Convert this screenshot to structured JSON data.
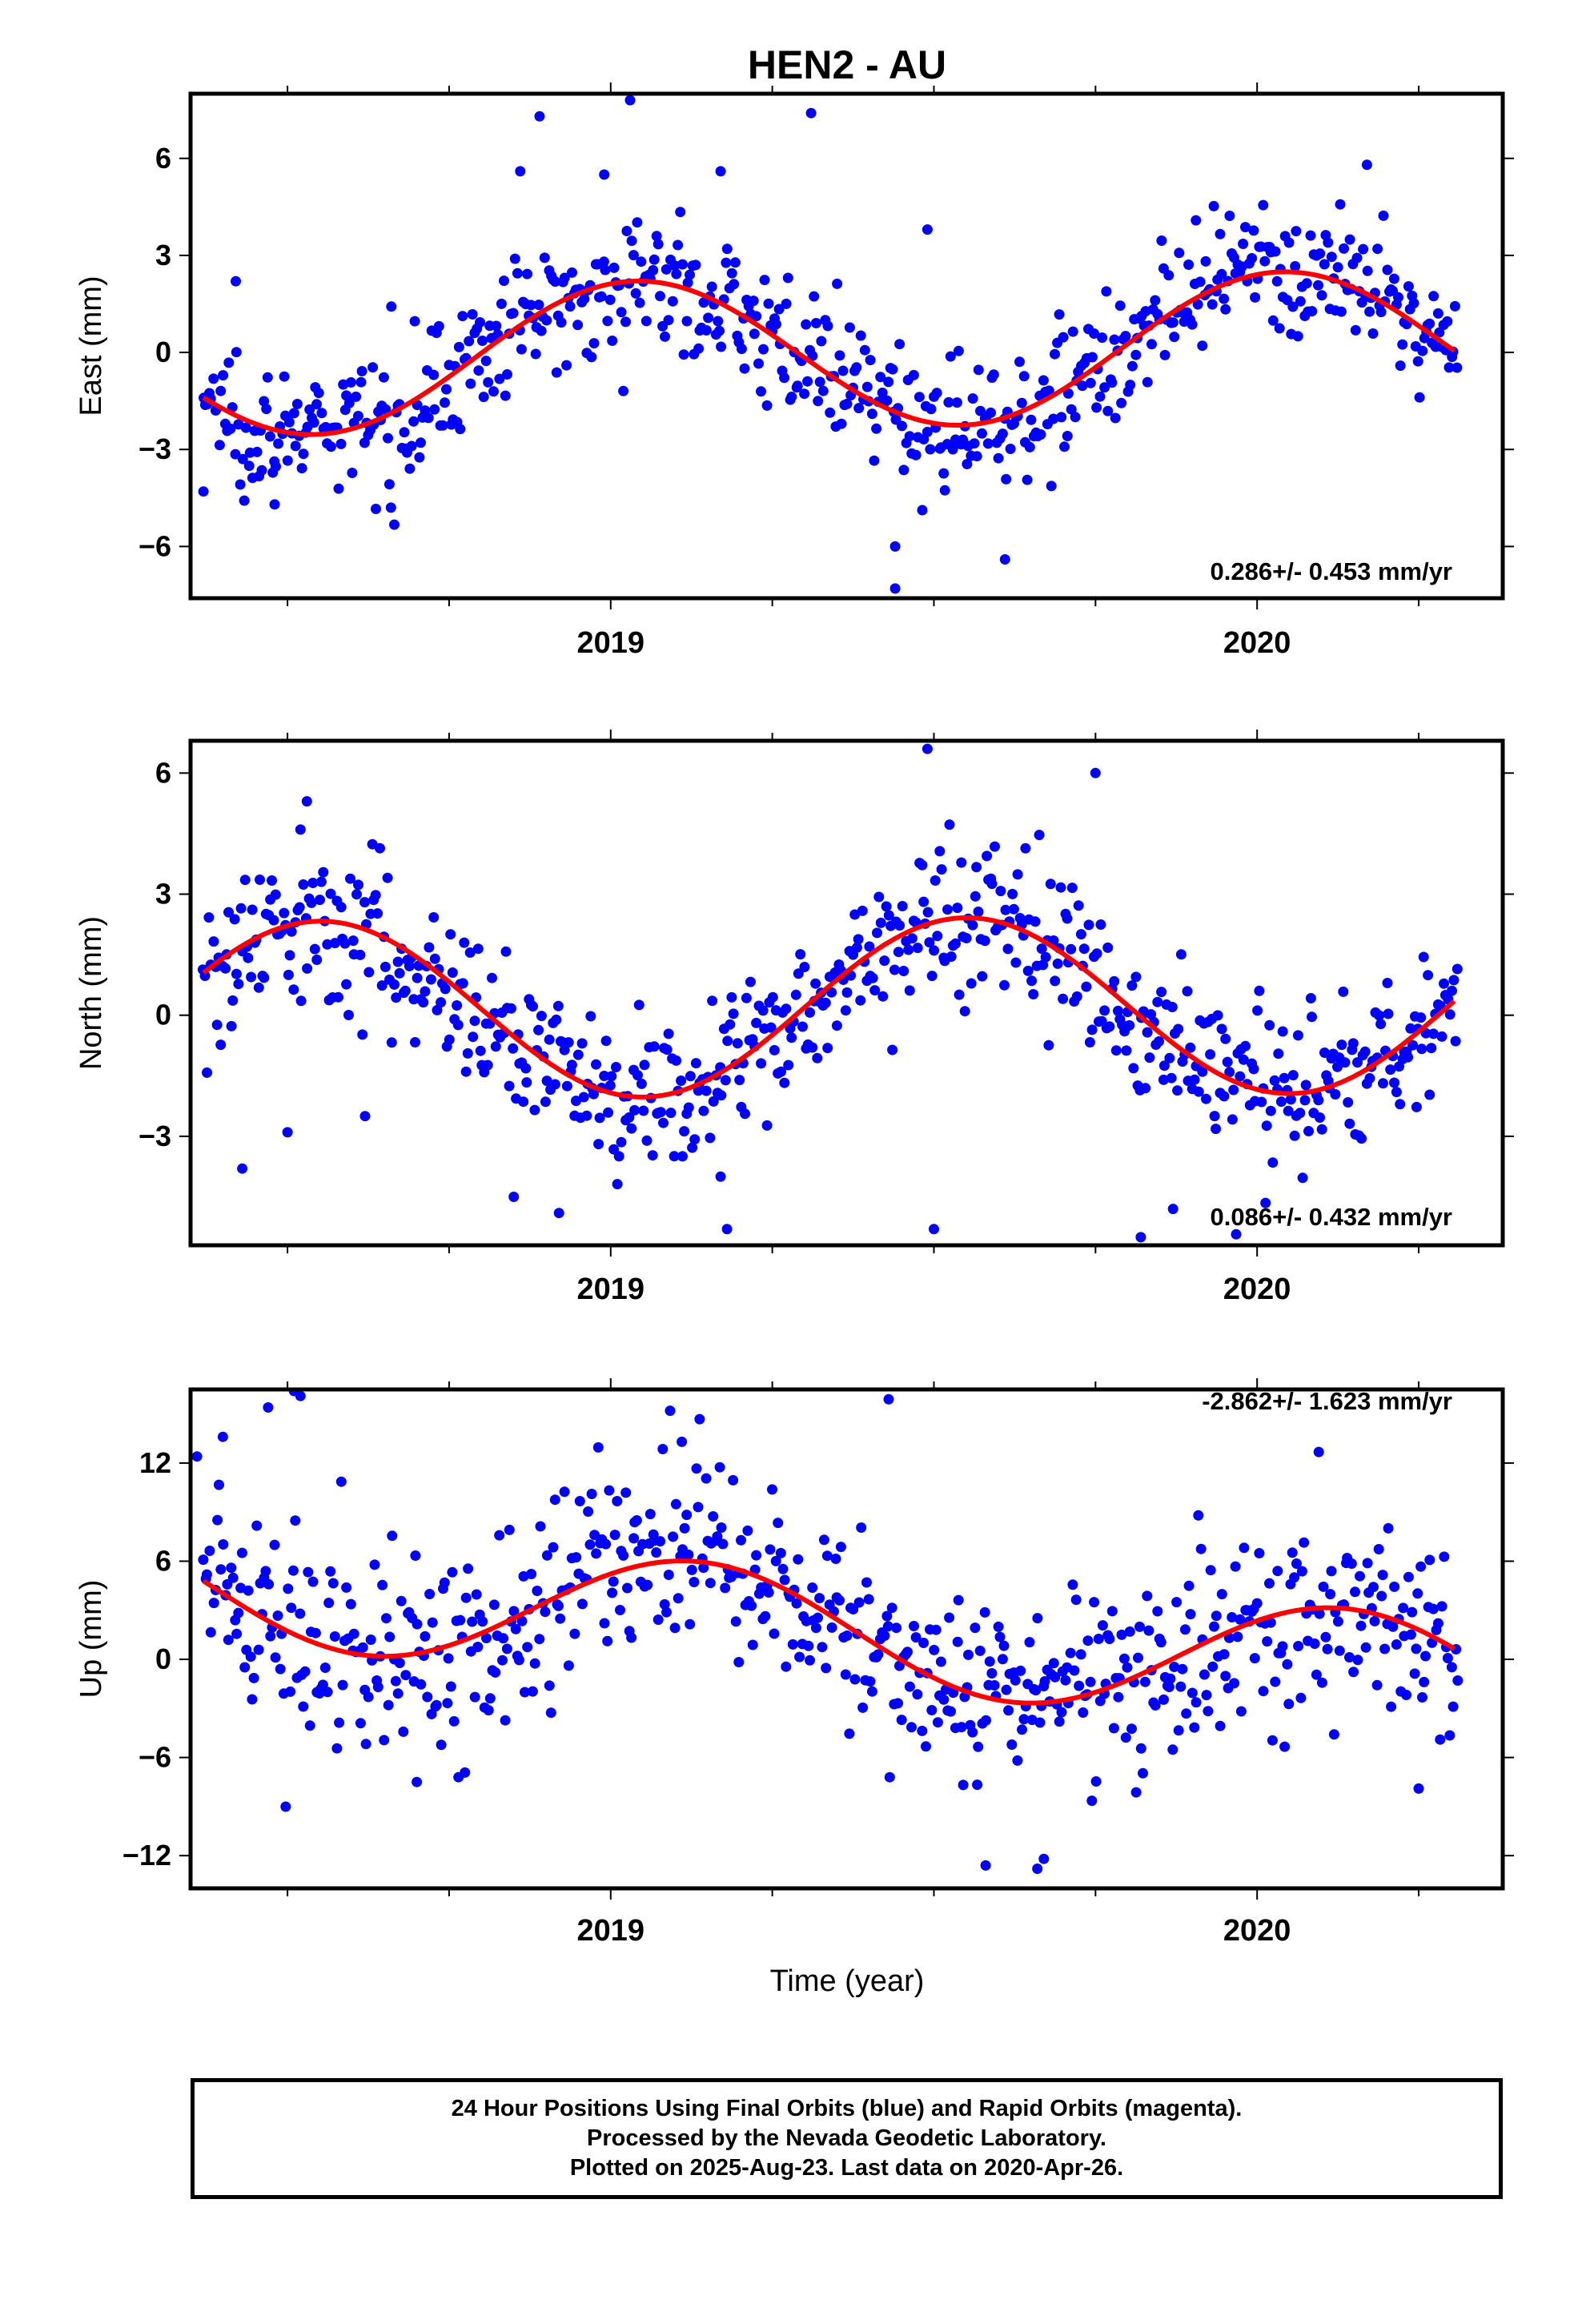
{
  "title": "HEN2 - AU",
  "xlabel": "Time (year)",
  "colors": {
    "final_orbits": "#0000ff",
    "model": "#ff0000",
    "frame": "#000000"
  },
  "caption": [
    "24 Hour Positions Using Final Orbits (blue) and Rapid Orbits (magenta).",
    "Processed by the Nevada Geodetic Laboratory.",
    "Plotted on 2025-Aug-23. Last data on 2020-Apr-26."
  ],
  "chart_data": [
    {
      "type": "scatter",
      "component": "East",
      "ylabel": "East (mm)",
      "rate_label": "0.286+/- 0.453 mm/yr",
      "xlim": [
        2018.35,
        2020.38
      ],
      "ylim": [
        -7.6,
        8.0
      ],
      "xticks": [
        2019,
        2020
      ],
      "xtick_labels": [
        "2019",
        "2020"
      ],
      "yticks": [
        -6,
        -3,
        0,
        3,
        6
      ],
      "ytick_labels": [
        "−6",
        "−3",
        "0",
        "3",
        "6"
      ],
      "model": {
        "mean": 0.0,
        "trend": 0.286,
        "amplitude": 2.3,
        "peak": 2019.04
      },
      "noise_sd": 1.0,
      "outliers": [
        [
          2019.03,
          7.8
        ],
        [
          2019.31,
          7.4
        ],
        [
          2018.89,
          7.3
        ],
        [
          2018.86,
          5.6
        ],
        [
          2018.99,
          5.5
        ],
        [
          2019.17,
          5.6
        ],
        [
          2019.49,
          3.8
        ],
        [
          2019.44,
          -6.0
        ],
        [
          2019.44,
          -7.3
        ],
        [
          2019.61,
          -6.4
        ],
        [
          2018.48,
          -4.7
        ],
        [
          2018.66,
          -4.8
        ],
        [
          2018.37,
          -4.3
        ],
        [
          2020.17,
          5.8
        ],
        [
          2018.42,
          2.2
        ]
      ]
    },
    {
      "type": "scatter",
      "component": "North",
      "ylabel": "North (mm)",
      "rate_label": "0.086+/- 0.432 mm/yr",
      "xlim": [
        2018.35,
        2020.38
      ],
      "ylim": [
        -5.7,
        6.8
      ],
      "xticks": [
        2019,
        2020
      ],
      "xtick_labels": [
        "2019",
        "2020"
      ],
      "yticks": [
        -3,
        0,
        3,
        6
      ],
      "ytick_labels": [
        "−3",
        "0",
        "3",
        "6"
      ],
      "model": {
        "mean": 0.2,
        "trend": 0.086,
        "amplitude": 2.2,
        "peak": 2018.55
      },
      "noise_sd": 0.95,
      "outliers": [
        [
          2019.49,
          6.6
        ],
        [
          2019.75,
          6.0
        ],
        [
          2018.53,
          5.3
        ],
        [
          2018.52,
          4.6
        ],
        [
          2018.43,
          -3.8
        ],
        [
          2018.5,
          -2.9
        ],
        [
          2018.62,
          -2.5
        ],
        [
          2018.85,
          -4.5
        ],
        [
          2018.92,
          -4.9
        ],
        [
          2019.18,
          -5.3
        ],
        [
          2019.5,
          -5.3
        ],
        [
          2019.82,
          -5.5
        ],
        [
          2019.87,
          -4.8
        ],
        [
          2019.17,
          -4.0
        ]
      ]
    },
    {
      "type": "scatter",
      "component": "Up",
      "ylabel": "Up (mm)",
      "rate_label": "-2.862+/- 1.623 mm/yr",
      "xlim": [
        2018.35,
        2020.38
      ],
      "ylim": [
        -14.0,
        16.5
      ],
      "xticks": [
        2019,
        2020
      ],
      "xtick_labels": [
        "2019",
        "2020"
      ],
      "yticks": [
        -12,
        -6,
        0,
        6,
        12
      ],
      "ytick_labels": [
        "−12",
        "−6",
        "0",
        "6",
        "12"
      ],
      "model": {
        "mean": 1.7,
        "trend": -2.862,
        "amplitude": 3.6,
        "peak": 2019.13
      },
      "noise_sd": 3.0,
      "outliers": [
        [
          2018.47,
          15.4
        ],
        [
          2018.52,
          16.1
        ],
        [
          2018.51,
          16.4
        ],
        [
          2018.4,
          13.6
        ],
        [
          2018.36,
          12.4
        ],
        [
          2019.11,
          13.3
        ],
        [
          2019.43,
          15.9
        ],
        [
          2018.7,
          -7.5
        ],
        [
          2019.66,
          -12.8
        ],
        [
          2019.67,
          -12.2
        ],
        [
          2019.58,
          -12.6
        ],
        [
          2020.25,
          -7.9
        ]
      ]
    }
  ]
}
